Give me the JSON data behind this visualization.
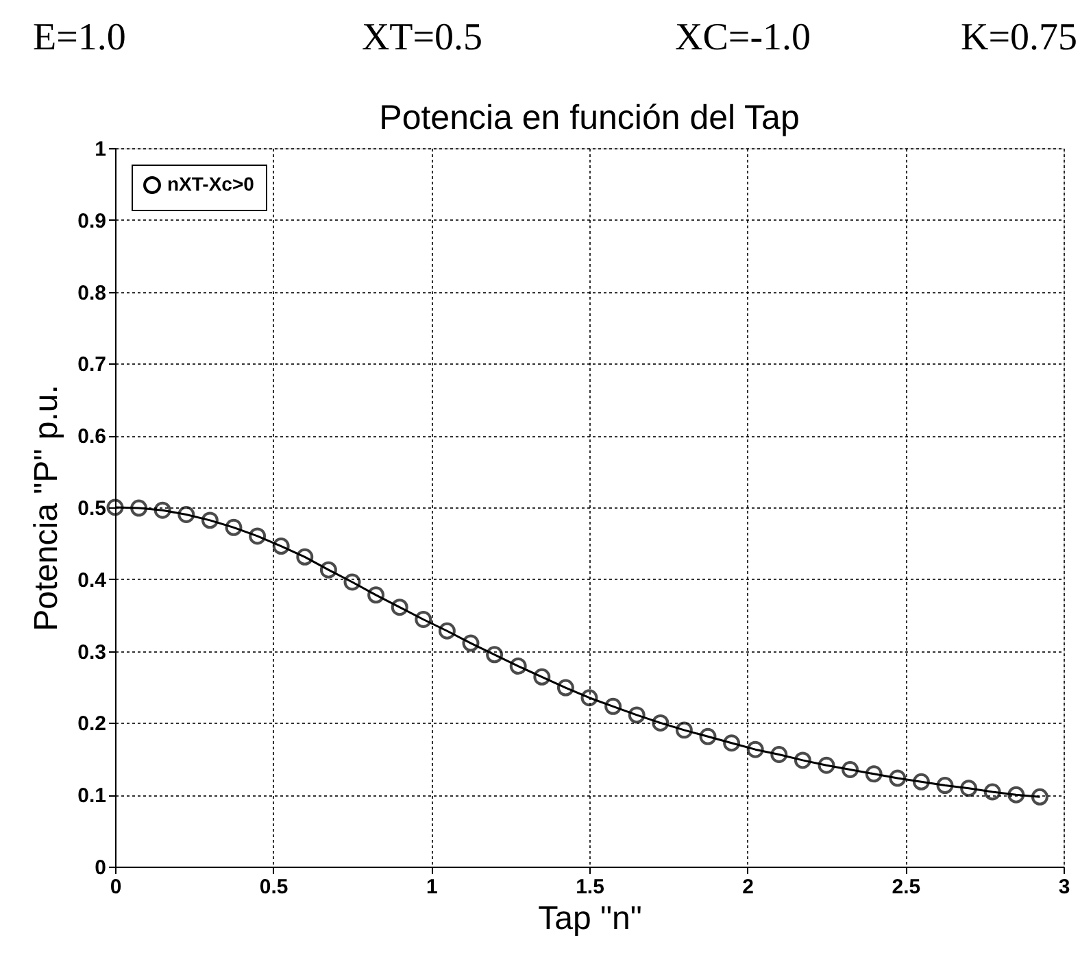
{
  "chart_data": {
    "type": "line",
    "title": "Potencia en función del Tap",
    "xlabel": "Tap \"n\"",
    "ylabel": "Potencia \"P\" p.u.",
    "annotations": [
      "E=1.0",
      "XT=0.5",
      "XC=-1.0",
      "K=0.75"
    ],
    "x": [
      0,
      0.075,
      0.15,
      0.225,
      0.3,
      0.375,
      0.45,
      0.525,
      0.6,
      0.675,
      0.75,
      0.825,
      0.9,
      0.975,
      1.05,
      1.125,
      1.2,
      1.275,
      1.35,
      1.425,
      1.5,
      1.575,
      1.65,
      1.725,
      1.8,
      1.875,
      1.95,
      2.025,
      2.1,
      2.175,
      2.25,
      2.325,
      2.4,
      2.475,
      2.55,
      2.625,
      2.7,
      2.775,
      2.85,
      2.925
    ],
    "series": [
      {
        "name": "nXT-Xc>0",
        "color": "#000000",
        "values": [
          0.5,
          0.499,
          0.496,
          0.49,
          0.482,
          0.472,
          0.46,
          0.446,
          0.431,
          0.413,
          0.396,
          0.378,
          0.361,
          0.344,
          0.328,
          0.311,
          0.295,
          0.279,
          0.264,
          0.249,
          0.235,
          0.223,
          0.211,
          0.2,
          0.19,
          0.181,
          0.172,
          0.163,
          0.156,
          0.148,
          0.141,
          0.135,
          0.129,
          0.123,
          0.118,
          0.113,
          0.109,
          0.104,
          0.1,
          0.097
        ]
      }
    ],
    "xlim": [
      0,
      3
    ],
    "xticks": [
      0,
      0.5,
      1,
      1.5,
      2,
      2.5,
      3
    ],
    "ylim": [
      0,
      1
    ],
    "yticks": [
      0,
      0.1,
      0.2,
      0.3,
      0.4,
      0.5,
      0.6,
      0.7,
      0.8,
      0.9,
      1
    ],
    "grid": true,
    "legend": "top left",
    "marker": "circle",
    "line_style": "solid"
  }
}
